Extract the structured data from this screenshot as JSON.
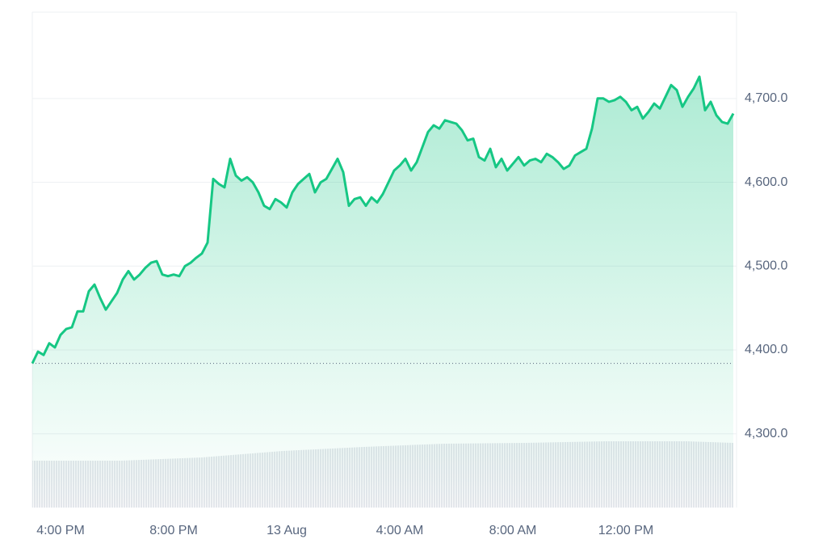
{
  "chart_data": {
    "type": "line",
    "color": "#16c784",
    "grid": true,
    "values": [
      4384,
      4398,
      4394,
      4408,
      4403,
      4418,
      4425,
      4427,
      4446,
      4446,
      4470,
      4478,
      4462,
      4448,
      4458,
      4468,
      4484,
      4494,
      4484,
      4490,
      4498,
      4504,
      4506,
      4490,
      4488,
      4490,
      4488,
      4500,
      4504,
      4510,
      4515,
      4528,
      4604,
      4598,
      4594,
      4628,
      4608,
      4602,
      4606,
      4600,
      4588,
      4572,
      4568,
      4580,
      4576,
      4570,
      4588,
      4598,
      4604,
      4610,
      4588,
      4600,
      4604,
      4616,
      4628,
      4612,
      4572,
      4580,
      4582,
      4572,
      4582,
      4576,
      4586,
      4600,
      4614,
      4620,
      4628,
      4614,
      4624,
      4642,
      4660,
      4668,
      4664,
      4674,
      4672,
      4670,
      4662,
      4650,
      4652,
      4630,
      4626,
      4640,
      4618,
      4628,
      4614,
      4622,
      4630,
      4620,
      4626,
      4628,
      4624,
      4634,
      4630,
      4624,
      4616,
      4620,
      4632,
      4636,
      4640,
      4664,
      4700,
      4700,
      4696,
      4698,
      4702,
      4696,
      4686,
      4690,
      4676,
      4684,
      4694,
      4688,
      4702,
      4716,
      4710,
      4690,
      4702,
      4712,
      4726,
      4686,
      4696,
      4680,
      4672,
      4670,
      4682
    ],
    "baseline": 4384,
    "xlim": [
      0,
      124
    ],
    "xticks": [
      {
        "value": 5,
        "label": "4:00 PM"
      },
      {
        "value": 25,
        "label": "8:00 PM"
      },
      {
        "value": 45,
        "label": "13 Aug"
      },
      {
        "value": 65,
        "label": "4:00 AM"
      },
      {
        "value": 85,
        "label": "8:00 AM"
      },
      {
        "value": 105,
        "label": "12:00 PM"
      }
    ],
    "ylim": [
      4212,
      4803
    ],
    "yticks": [
      {
        "value": 4300,
        "label": "4,300.0"
      },
      {
        "value": 4400,
        "label": "4,400.0"
      },
      {
        "value": 4500,
        "label": "4,500.0"
      },
      {
        "value": 4600,
        "label": "4,600.0"
      },
      {
        "value": 4700,
        "label": "4,700.0"
      }
    ]
  }
}
